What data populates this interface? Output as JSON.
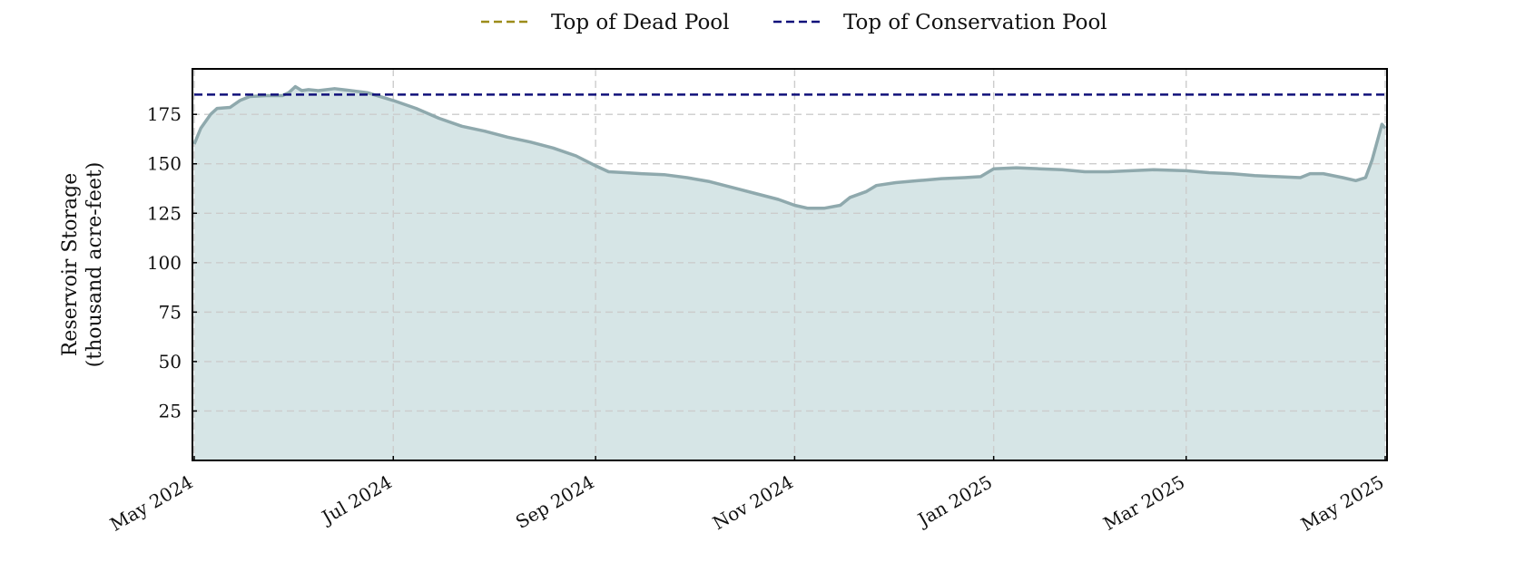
{
  "chart_data": {
    "type": "area",
    "title": "",
    "xlabel": "",
    "ylabel_lines": [
      "Reservoir Storage",
      "(thousand acre-feet)"
    ],
    "x_type": "date",
    "xlim": [
      "2024-05-01",
      "2025-05-01"
    ],
    "ylim": [
      0,
      198
    ],
    "yticks": [
      25,
      50,
      75,
      100,
      125,
      150,
      175
    ],
    "xticks": [
      {
        "date": "2024-05-01",
        "label": "May 2024"
      },
      {
        "date": "2024-07-01",
        "label": "Jul 2024"
      },
      {
        "date": "2024-09-01",
        "label": "Sep 2024"
      },
      {
        "date": "2024-11-01",
        "label": "Nov 2024"
      },
      {
        "date": "2025-01-01",
        "label": "Jan 2025"
      },
      {
        "date": "2025-03-01",
        "label": "Mar 2025"
      },
      {
        "date": "2025-05-01",
        "label": "May 2025"
      }
    ],
    "grid": true,
    "legend_placement": "top-center, outside plot",
    "legend": [
      {
        "label": "Top of Dead Pool",
        "color": "#9c8c1a",
        "style": "dashed"
      },
      {
        "label": "Top of Conservation Pool",
        "color": "#10107a",
        "style": "dashed"
      }
    ],
    "reference_lines": [
      {
        "name": "Top of Conservation Pool",
        "y": 185,
        "color": "#10107a"
      }
    ],
    "series": [
      {
        "line_color": "#8fa9ad",
        "fill_color": "#d6e5e6",
        "points": [
          [
            "2024-05-01",
            160
          ],
          [
            "2024-05-03",
            168
          ],
          [
            "2024-05-06",
            175
          ],
          [
            "2024-05-08",
            178
          ],
          [
            "2024-05-12",
            178.5
          ],
          [
            "2024-05-15",
            182
          ],
          [
            "2024-05-18",
            184
          ],
          [
            "2024-05-23",
            184.5
          ],
          [
            "2024-05-28",
            184.5
          ],
          [
            "2024-05-30",
            186
          ],
          [
            "2024-06-01",
            189
          ],
          [
            "2024-06-03",
            187
          ],
          [
            "2024-06-05",
            187.5
          ],
          [
            "2024-06-08",
            187
          ],
          [
            "2024-06-13",
            188
          ],
          [
            "2024-06-18",
            187
          ],
          [
            "2024-06-23",
            186
          ],
          [
            "2024-07-01",
            182
          ],
          [
            "2024-07-08",
            178
          ],
          [
            "2024-07-15",
            173
          ],
          [
            "2024-07-22",
            169
          ],
          [
            "2024-07-29",
            166.5
          ],
          [
            "2024-08-05",
            163.5
          ],
          [
            "2024-08-12",
            161
          ],
          [
            "2024-08-19",
            158
          ],
          [
            "2024-08-26",
            154
          ],
          [
            "2024-09-01",
            149
          ],
          [
            "2024-09-05",
            146
          ],
          [
            "2024-09-10",
            145.5
          ],
          [
            "2024-09-15",
            145
          ],
          [
            "2024-09-22",
            144.5
          ],
          [
            "2024-09-29",
            143
          ],
          [
            "2024-10-06",
            141
          ],
          [
            "2024-10-13",
            138
          ],
          [
            "2024-10-20",
            135
          ],
          [
            "2024-10-27",
            132
          ],
          [
            "2024-11-01",
            129
          ],
          [
            "2024-11-05",
            127.5
          ],
          [
            "2024-11-10",
            127.5
          ],
          [
            "2024-11-15",
            129
          ],
          [
            "2024-11-18",
            133
          ],
          [
            "2024-11-23",
            136
          ],
          [
            "2024-11-26",
            139
          ],
          [
            "2024-12-02",
            140.5
          ],
          [
            "2024-12-09",
            141.5
          ],
          [
            "2024-12-16",
            142.5
          ],
          [
            "2024-12-23",
            143
          ],
          [
            "2024-12-28",
            143.5
          ],
          [
            "2025-01-01",
            147.5
          ],
          [
            "2025-01-08",
            148
          ],
          [
            "2025-01-15",
            147.5
          ],
          [
            "2025-01-22",
            147
          ],
          [
            "2025-01-29",
            146
          ],
          [
            "2025-02-05",
            146
          ],
          [
            "2025-02-12",
            146.5
          ],
          [
            "2025-02-19",
            147
          ],
          [
            "2025-03-01",
            146.5
          ],
          [
            "2025-03-08",
            145.5
          ],
          [
            "2025-03-15",
            145
          ],
          [
            "2025-03-22",
            144
          ],
          [
            "2025-03-29",
            143.5
          ],
          [
            "2025-04-05",
            143
          ],
          [
            "2025-04-08",
            145
          ],
          [
            "2025-04-12",
            145
          ],
          [
            "2025-04-18",
            143
          ],
          [
            "2025-04-22",
            141.5
          ],
          [
            "2025-04-25",
            143
          ],
          [
            "2025-04-27",
            152
          ],
          [
            "2025-04-29",
            164
          ],
          [
            "2025-04-30",
            170
          ],
          [
            "2025-05-01",
            168
          ]
        ]
      }
    ]
  }
}
